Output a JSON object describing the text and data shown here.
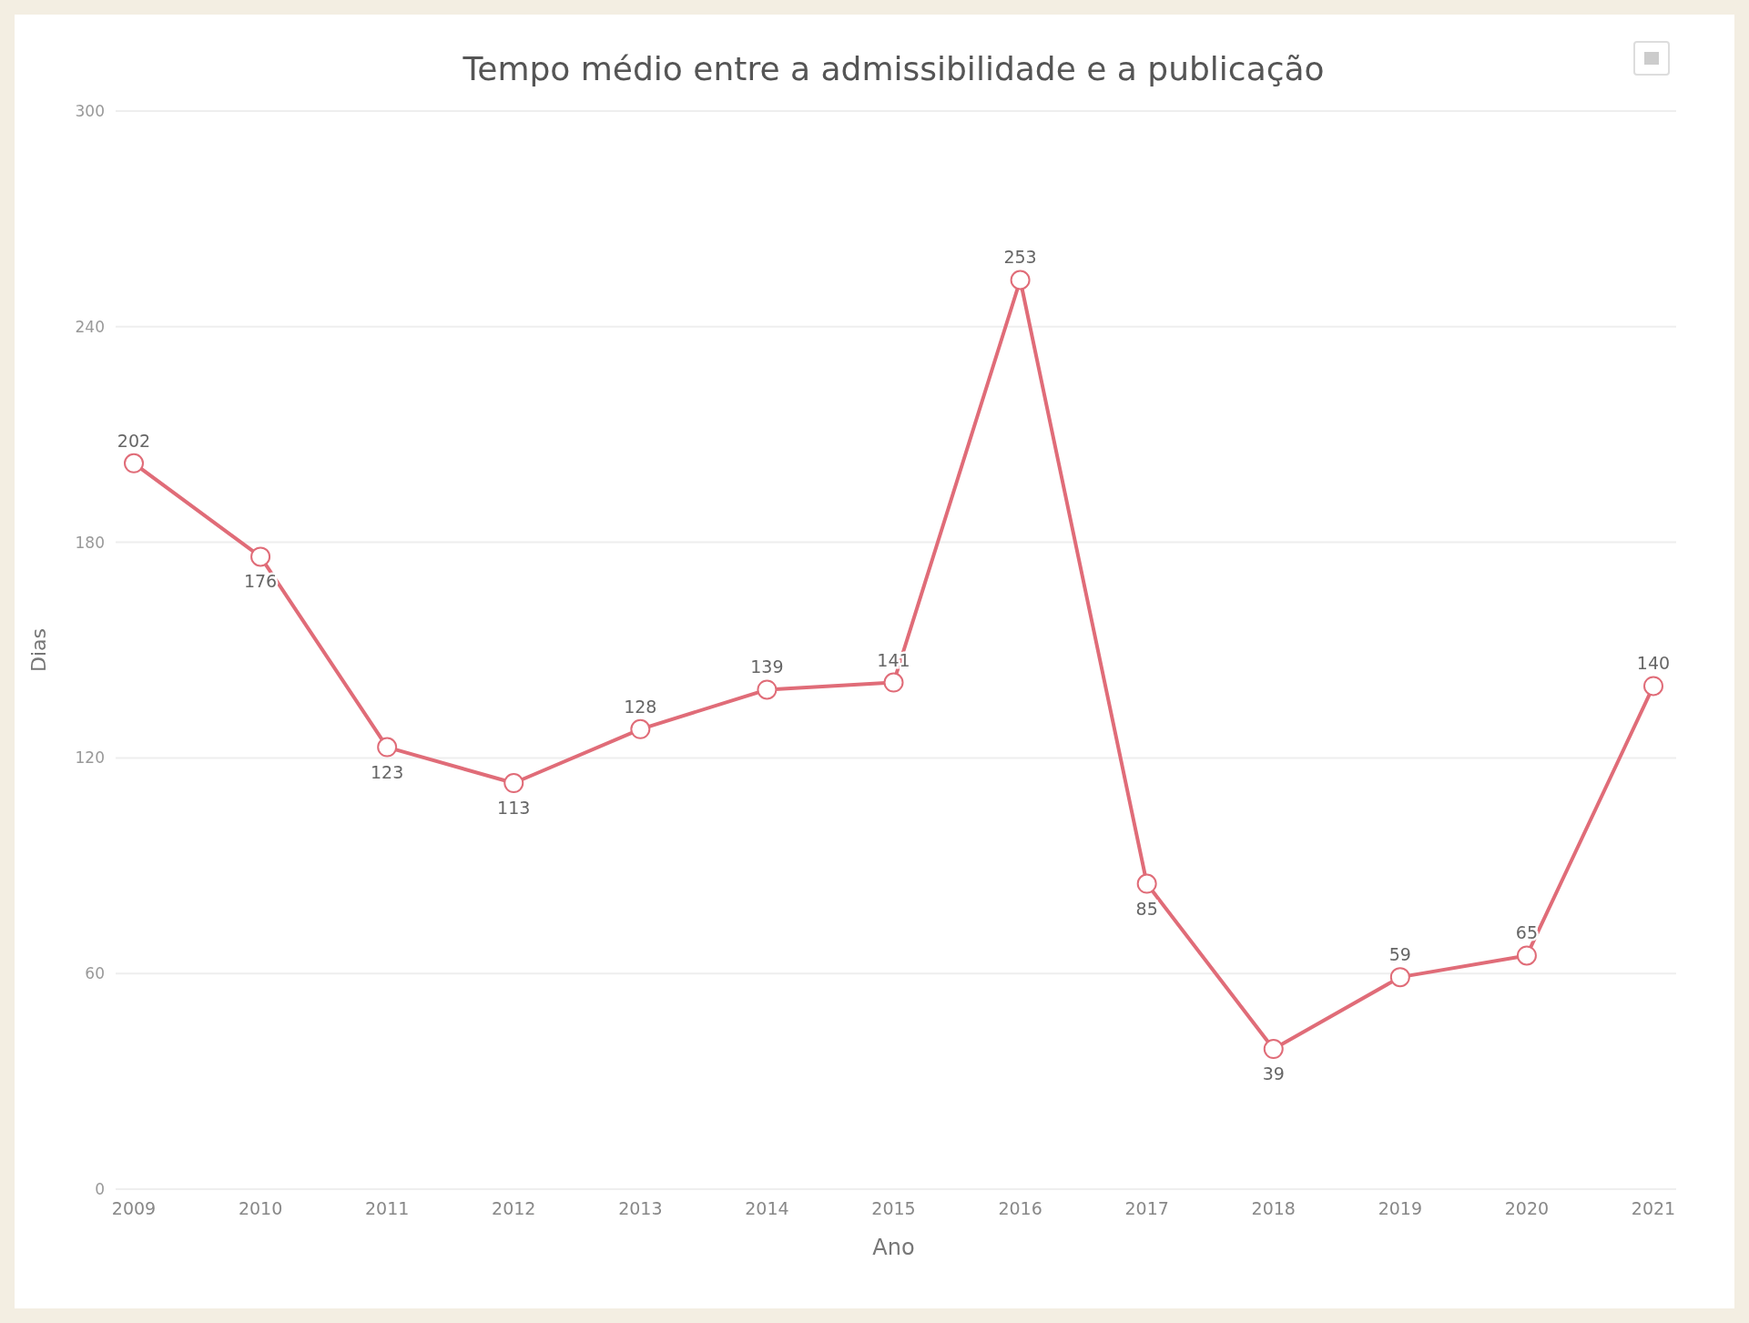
{
  "chart_data": {
    "type": "line",
    "title": "Tempo médio entre a admissibilidade e a publicação",
    "xlabel": "Ano",
    "ylabel": "Dias",
    "categories": [
      "2009",
      "2010",
      "2011",
      "2012",
      "2013",
      "2014",
      "2015",
      "2016",
      "2017",
      "2018",
      "2019",
      "2020",
      "2021"
    ],
    "series": [
      {
        "color": "#e06c78",
        "values": [
          202,
          176,
          123,
          113,
          128,
          139,
          141,
          253,
          85,
          39,
          59,
          65,
          140
        ]
      }
    ],
    "ylim": [
      0,
      300
    ],
    "yticks": [
      0,
      60,
      120,
      180,
      240,
      300
    ],
    "grid": "y",
    "marker": "circle",
    "data_labels": true
  }
}
